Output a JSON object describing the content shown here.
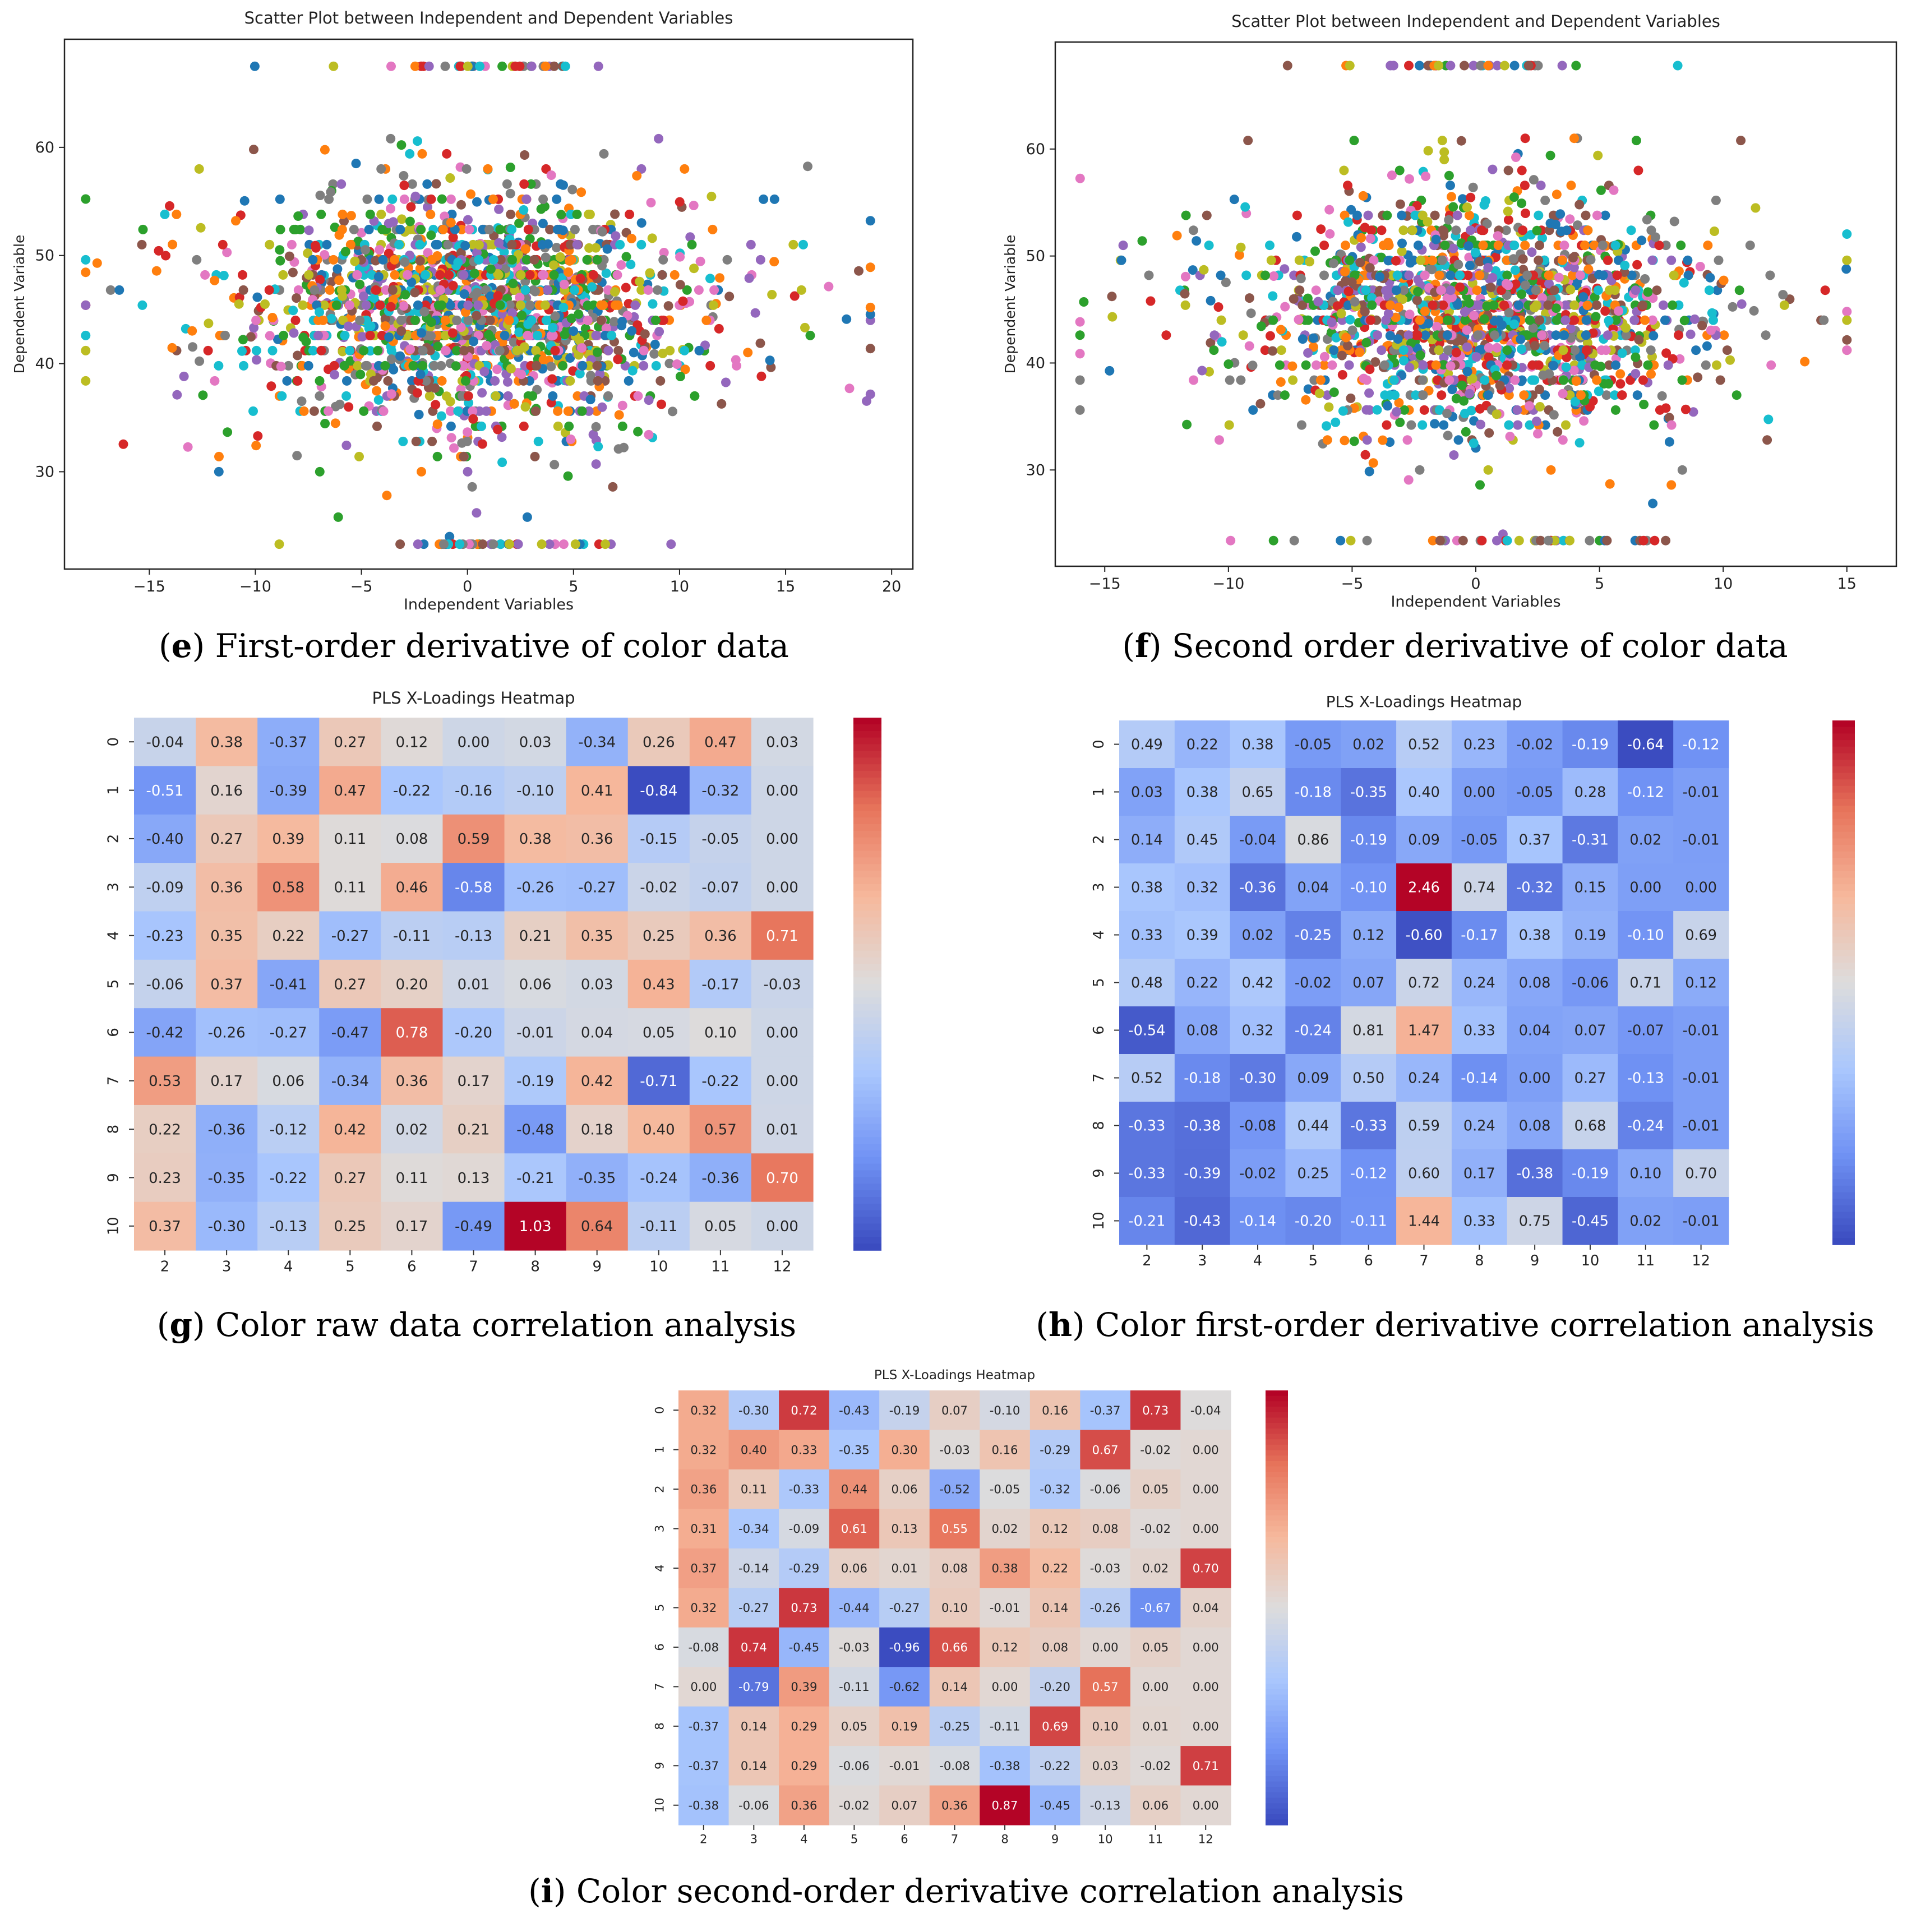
{
  "colormap": [
    "#3b4cc0",
    "#7092f4",
    "#aac7fd",
    "#dddcdc",
    "#f6b89c",
    "#e7745b",
    "#b40426"
  ],
  "point_palette": [
    "#1f77b4",
    "#ff7f0e",
    "#2ca02c",
    "#d62728",
    "#9467bd",
    "#8c564b",
    "#e377c2",
    "#7f7f7f",
    "#bcbd22",
    "#17becf"
  ],
  "chart_data": [
    {
      "id": "e",
      "type": "scatter",
      "title": "Scatter Plot between Independent and Dependent Variables",
      "xlabel": "Independent Variables",
      "ylabel": "Dependent Variable",
      "xlim": [
        -19,
        21
      ],
      "ylim": [
        21,
        70
      ],
      "xticks": [
        -15,
        -10,
        -5,
        0,
        5,
        10,
        15,
        20
      ],
      "yticks": [
        30,
        40,
        50,
        60
      ],
      "distribution": {
        "x_center": 0.5,
        "x_spread": 4.8,
        "y_center": 45,
        "y_spread": 5.5,
        "n_points": 1900,
        "top_row_y": 67.5,
        "bottom_row_y": 23.3
      },
      "caption_label": "e",
      "caption_text": " First-order derivative of color data"
    },
    {
      "id": "f",
      "type": "scatter",
      "title": "Scatter Plot between Independent and Dependent Variables",
      "xlabel": "Independent Variables",
      "ylabel": "Dependent Variable",
      "xlim": [
        -17,
        17
      ],
      "ylim": [
        21,
        70
      ],
      "xticks": [
        -15,
        -10,
        -5,
        0,
        5,
        10,
        15
      ],
      "yticks": [
        30,
        40,
        50,
        60
      ],
      "distribution": {
        "x_center": 0.0,
        "x_spread": 4.2,
        "y_center": 44.5,
        "y_spread": 5.5,
        "n_points": 1900,
        "top_row_y": 67.8,
        "bottom_row_y": 23.4
      },
      "caption_label": "f",
      "caption_text": " Second order derivative of color data"
    },
    {
      "id": "g",
      "type": "heatmap",
      "title": "PLS X-Loadings Heatmap",
      "x_categories": [
        "2",
        "3",
        "4",
        "5",
        "6",
        "7",
        "8",
        "9",
        "10",
        "11",
        "12"
      ],
      "y_categories": [
        "0",
        "1",
        "2",
        "3",
        "4",
        "5",
        "6",
        "7",
        "8",
        "9",
        "10"
      ],
      "vmin": -0.84,
      "vmax": 1.03,
      "values": [
        [
          -0.04,
          0.38,
          -0.37,
          0.27,
          0.12,
          0.0,
          0.03,
          -0.34,
          0.26,
          0.47,
          0.03
        ],
        [
          -0.51,
          0.16,
          -0.39,
          0.47,
          -0.22,
          -0.16,
          -0.1,
          0.41,
          -0.84,
          -0.32,
          0.0
        ],
        [
          -0.4,
          0.27,
          0.39,
          0.11,
          0.08,
          0.59,
          0.38,
          0.36,
          -0.15,
          -0.05,
          0.0
        ],
        [
          -0.09,
          0.36,
          0.58,
          0.11,
          0.46,
          -0.58,
          -0.26,
          -0.27,
          -0.02,
          -0.07,
          -0.0
        ],
        [
          -0.23,
          0.35,
          0.22,
          -0.27,
          -0.11,
          -0.13,
          0.21,
          0.35,
          0.25,
          0.36,
          0.71
        ],
        [
          -0.06,
          0.37,
          -0.41,
          0.27,
          0.2,
          0.01,
          0.06,
          0.03,
          0.43,
          -0.17,
          -0.03
        ],
        [
          -0.42,
          -0.26,
          -0.27,
          -0.47,
          0.78,
          -0.2,
          -0.01,
          0.04,
          0.05,
          0.1,
          0.0
        ],
        [
          0.53,
          0.17,
          0.06,
          -0.34,
          0.36,
          0.17,
          -0.19,
          0.42,
          -0.71,
          -0.22,
          0.0
        ],
        [
          0.22,
          -0.36,
          -0.12,
          0.42,
          0.02,
          0.21,
          -0.48,
          0.18,
          0.4,
          0.57,
          0.01
        ],
        [
          0.23,
          -0.35,
          -0.22,
          0.27,
          0.11,
          0.13,
          -0.21,
          -0.35,
          -0.24,
          -0.36,
          0.7
        ],
        [
          0.37,
          -0.3,
          -0.13,
          0.25,
          0.17,
          -0.49,
          1.03,
          0.64,
          -0.11,
          0.05,
          0.0
        ]
      ],
      "caption_label": "g",
      "caption_text": " Color raw data correlation analysis"
    },
    {
      "id": "h",
      "type": "heatmap",
      "title": "PLS X-Loadings Heatmap",
      "x_categories": [
        "2",
        "3",
        "4",
        "5",
        "6",
        "7",
        "8",
        "9",
        "10",
        "11",
        "12"
      ],
      "y_categories": [
        "0",
        "1",
        "2",
        "3",
        "4",
        "5",
        "6",
        "7",
        "8",
        "9",
        "10"
      ],
      "vmin": -0.64,
      "vmax": 2.46,
      "values": [
        [
          0.49,
          0.22,
          0.38,
          -0.05,
          0.02,
          0.52,
          0.23,
          -0.02,
          -0.19,
          -0.64,
          -0.12
        ],
        [
          0.03,
          0.38,
          0.65,
          -0.18,
          -0.35,
          0.4,
          -0.0,
          -0.05,
          0.28,
          -0.12,
          -0.01
        ],
        [
          0.14,
          0.45,
          -0.04,
          0.86,
          -0.19,
          0.09,
          -0.05,
          0.37,
          -0.31,
          0.02,
          -0.01
        ],
        [
          0.38,
          0.32,
          -0.36,
          0.04,
          -0.1,
          2.46,
          0.74,
          -0.32,
          0.15,
          -0.0,
          0.0
        ],
        [
          0.33,
          0.39,
          0.02,
          -0.25,
          0.12,
          -0.6,
          -0.17,
          0.38,
          0.19,
          -0.1,
          0.69
        ],
        [
          0.48,
          0.22,
          0.42,
          -0.02,
          0.07,
          0.72,
          0.24,
          0.08,
          -0.06,
          0.71,
          0.12
        ],
        [
          -0.54,
          0.08,
          0.32,
          -0.24,
          0.81,
          1.47,
          0.33,
          0.04,
          0.07,
          -0.07,
          -0.01
        ],
        [
          0.52,
          -0.18,
          -0.3,
          0.09,
          0.5,
          0.24,
          -0.14,
          0.0,
          0.27,
          -0.13,
          -0.01
        ],
        [
          -0.33,
          -0.38,
          -0.08,
          0.44,
          -0.33,
          0.59,
          0.24,
          0.08,
          0.68,
          -0.24,
          -0.01
        ],
        [
          -0.33,
          -0.39,
          -0.02,
          0.25,
          -0.12,
          0.6,
          0.17,
          -0.38,
          -0.19,
          0.1,
          0.7
        ],
        [
          -0.21,
          -0.43,
          -0.14,
          -0.2,
          -0.11,
          1.44,
          0.33,
          0.75,
          -0.45,
          0.02,
          -0.01
        ]
      ],
      "caption_label": "h",
      "caption_text": " Color first-order derivative correlation analysis"
    },
    {
      "id": "i",
      "type": "heatmap",
      "title": "PLS X-Loadings Heatmap",
      "x_categories": [
        "2",
        "3",
        "4",
        "5",
        "6",
        "7",
        "8",
        "9",
        "10",
        "11",
        "12"
      ],
      "y_categories": [
        "0",
        "1",
        "2",
        "3",
        "4",
        "5",
        "6",
        "7",
        "8",
        "9",
        "10"
      ],
      "vmin": -0.96,
      "vmax": 0.87,
      "values": [
        [
          0.32,
          -0.3,
          0.72,
          -0.43,
          -0.19,
          0.07,
          -0.1,
          0.16,
          -0.37,
          0.73,
          -0.04
        ],
        [
          0.32,
          0.4,
          0.33,
          -0.35,
          0.3,
          -0.03,
          0.16,
          -0.29,
          0.67,
          -0.02,
          -0.0
        ],
        [
          0.36,
          0.11,
          -0.33,
          0.44,
          0.06,
          -0.52,
          -0.05,
          -0.32,
          -0.06,
          0.05,
          -0.0
        ],
        [
          0.31,
          -0.34,
          -0.09,
          0.61,
          0.13,
          0.55,
          0.02,
          0.12,
          0.08,
          -0.02,
          0.0
        ],
        [
          0.37,
          -0.14,
          -0.29,
          0.06,
          0.01,
          0.08,
          0.38,
          0.22,
          -0.03,
          0.02,
          0.7
        ],
        [
          0.32,
          -0.27,
          0.73,
          -0.44,
          -0.27,
          0.1,
          -0.01,
          0.14,
          -0.26,
          -0.67,
          0.04
        ],
        [
          -0.08,
          0.74,
          -0.45,
          -0.03,
          -0.96,
          0.66,
          0.12,
          0.08,
          0.0,
          0.05,
          -0.0
        ],
        [
          0.0,
          -0.79,
          0.39,
          -0.11,
          -0.62,
          0.14,
          0.0,
          -0.2,
          0.57,
          -0.0,
          -0.0
        ],
        [
          -0.37,
          0.14,
          0.29,
          0.05,
          0.19,
          -0.25,
          -0.11,
          0.69,
          0.1,
          0.01,
          -0.0
        ],
        [
          -0.37,
          0.14,
          0.29,
          -0.06,
          -0.01,
          -0.08,
          -0.38,
          -0.22,
          0.03,
          -0.02,
          0.71
        ],
        [
          -0.38,
          -0.06,
          0.36,
          -0.02,
          0.07,
          0.36,
          0.87,
          -0.45,
          -0.13,
          0.06,
          -0.0
        ]
      ],
      "caption_label": "i",
      "caption_text": " Color second-order derivative correlation analysis"
    }
  ]
}
